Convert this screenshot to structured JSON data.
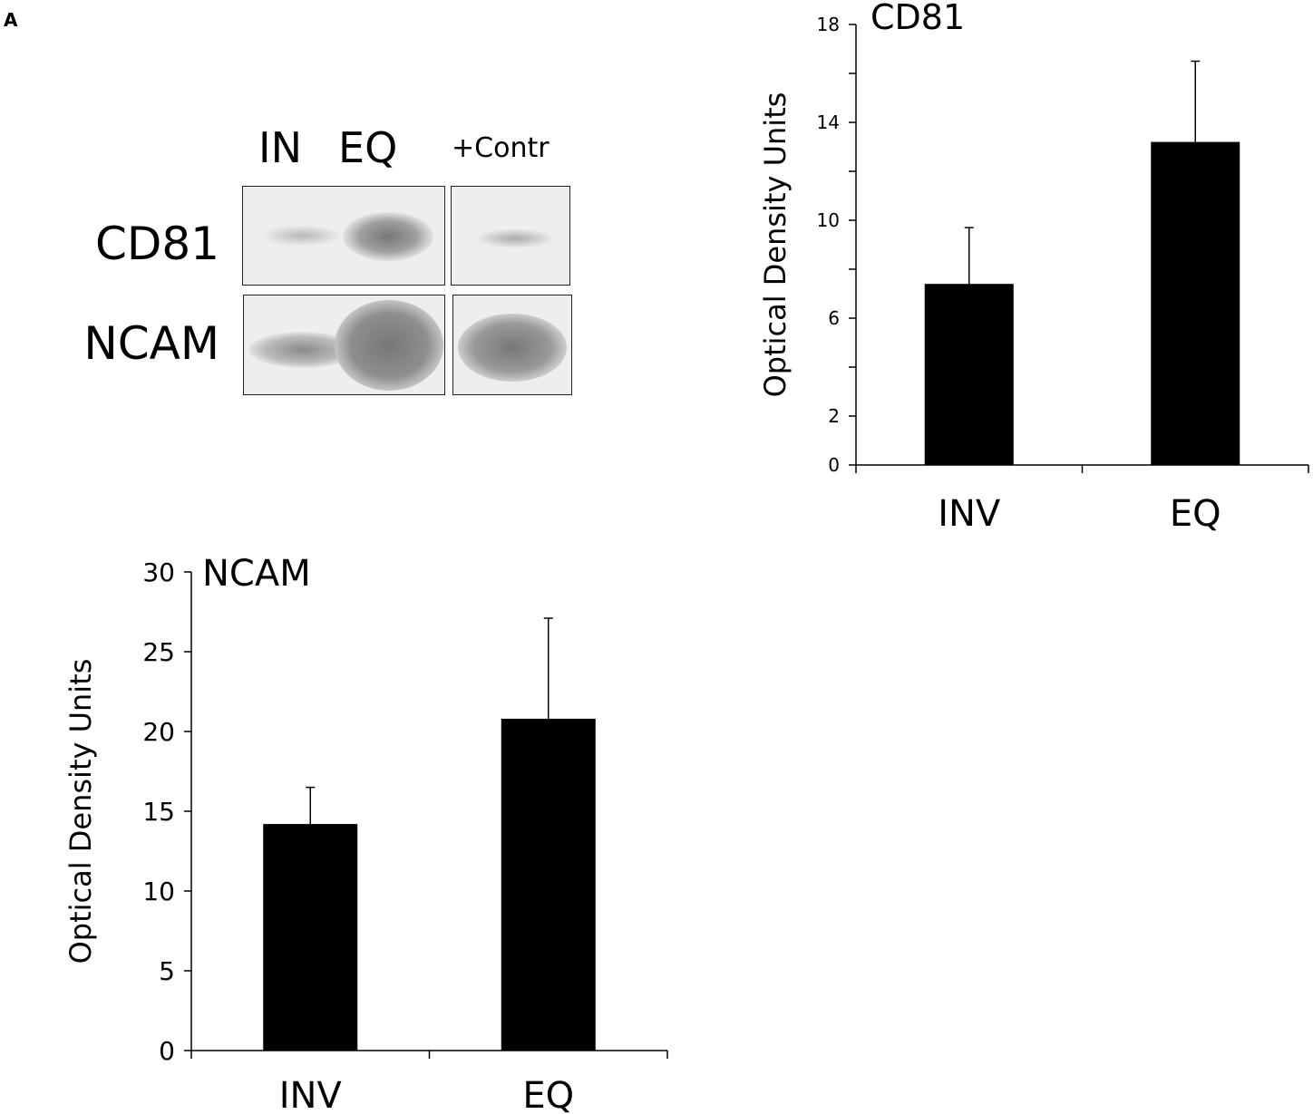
{
  "panel_label": "A",
  "blot": {
    "lanes": [
      "IN",
      "EQ",
      "+Contr"
    ],
    "rows": [
      "CD81",
      "NCAM"
    ]
  },
  "chart_data": [
    {
      "type": "bar",
      "title": "CD81",
      "ylabel": "Optical Density Units",
      "xlabel": "",
      "categories": [
        "INV",
        "EQ"
      ],
      "values": [
        7.4,
        13.2
      ],
      "error": [
        2.3,
        3.3
      ],
      "ylim": [
        0,
        18
      ],
      "yticks": [
        0,
        2,
        6,
        10,
        14,
        18
      ],
      "minor_yticks": [
        4,
        8,
        12,
        16
      ],
      "bar_color": "#000000",
      "grid": false
    },
    {
      "type": "bar",
      "title": "NCAM",
      "ylabel": "Optical Density Units",
      "xlabel": "",
      "categories": [
        "INV",
        "EQ"
      ],
      "values": [
        14.2,
        20.8
      ],
      "error": [
        2.3,
        6.3
      ],
      "ylim": [
        0,
        30
      ],
      "yticks": [
        0,
        5,
        10,
        15,
        20,
        25,
        30
      ],
      "minor_yticks": [],
      "bar_color": "#000000",
      "grid": false
    }
  ]
}
